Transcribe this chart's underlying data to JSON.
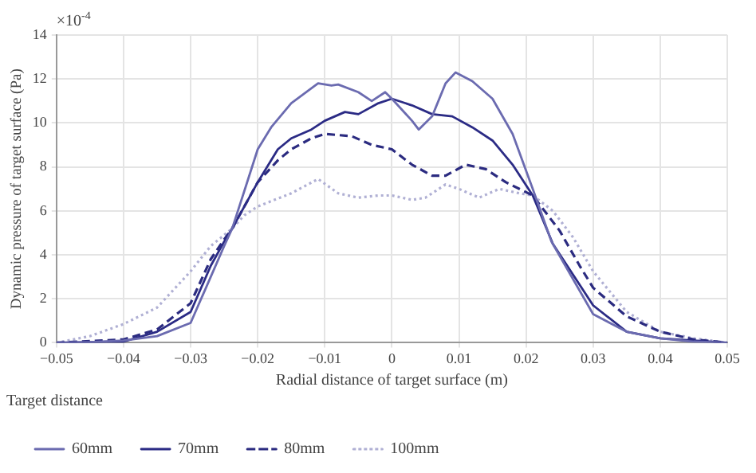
{
  "chart_data": {
    "type": "line",
    "xlabel": "Radial distance of target surface (m)",
    "ylabel": "Dynamic pressure of target surface (Pa)",
    "annotations": [
      "×10$^{-4}$"
    ],
    "legend_title": "Target distance",
    "legend": "bottom",
    "grid": true,
    "marker": "none",
    "xlim": [
      -0.05,
      0.05
    ],
    "xticks": [
      -0.05,
      -0.04,
      -0.03,
      -0.02,
      -0.01,
      0,
      0.01,
      0.02,
      0.03,
      0.04,
      0.05
    ],
    "ylim": [
      0,
      14
    ],
    "yticks": [
      0,
      2,
      4,
      6,
      8,
      10,
      12,
      14
    ],
    "series": [
      {
        "name": "60mm",
        "color": "#6b6bb0",
        "line_style": "solid",
        "x": [
          -0.05,
          -0.045,
          -0.04,
          -0.035,
          -0.03,
          -0.027,
          -0.025,
          -0.0238,
          -0.022,
          -0.02,
          -0.018,
          -0.015,
          -0.011,
          -0.009,
          -0.008,
          -0.005,
          -0.003,
          -0.001,
          0,
          0.003,
          0.004,
          0.006,
          0.008,
          0.0095,
          0.012,
          0.015,
          0.018,
          0.021,
          0.0238,
          0.03,
          0.035,
          0.04,
          0.045,
          0.05
        ],
        "values": [
          0,
          0.03,
          0.1,
          0.3,
          0.9,
          3.0,
          4.4,
          5.2,
          6.9,
          8.8,
          9.8,
          10.9,
          11.8,
          11.7,
          11.75,
          11.4,
          11.0,
          11.4,
          11.1,
          10.1,
          9.7,
          10.3,
          11.8,
          12.3,
          11.9,
          11.1,
          9.5,
          7.0,
          4.6,
          1.3,
          0.5,
          0.2,
          0.05,
          0
        ]
      },
      {
        "name": "70mm",
        "color": "#2b2b85",
        "line_style": "solid",
        "x": [
          -0.05,
          -0.04,
          -0.035,
          -0.03,
          -0.027,
          -0.025,
          -0.0238,
          -0.02,
          -0.017,
          -0.015,
          -0.012,
          -0.01,
          -0.007,
          -0.005,
          -0.002,
          0,
          0.003,
          0.006,
          0.009,
          0.012,
          0.015,
          0.018,
          0.021,
          0.024,
          0.03,
          0.035,
          0.04,
          0.05
        ],
        "values": [
          0,
          0.05,
          0.5,
          1.4,
          3.5,
          4.6,
          5.2,
          7.3,
          8.8,
          9.3,
          9.7,
          10.1,
          10.5,
          10.4,
          10.9,
          11.1,
          10.8,
          10.4,
          10.3,
          9.8,
          9.2,
          8.1,
          6.7,
          4.5,
          1.7,
          0.5,
          0.2,
          0
        ]
      },
      {
        "name": "80mm",
        "color": "#2b2b80",
        "line_style": "dashed",
        "x": [
          -0.05,
          -0.04,
          -0.035,
          -0.03,
          -0.027,
          -0.025,
          -0.0238,
          -0.02,
          -0.017,
          -0.015,
          -0.012,
          -0.01,
          -0.006,
          -0.003,
          0,
          0.003,
          0.006,
          0.008,
          0.011,
          0.014,
          0.017,
          0.021,
          0.025,
          0.028,
          0.03,
          0.035,
          0.04,
          0.045,
          0.05
        ],
        "values": [
          0,
          0.15,
          0.6,
          1.8,
          3.8,
          4.7,
          5.2,
          7.3,
          8.3,
          8.8,
          9.3,
          9.5,
          9.4,
          9.0,
          8.8,
          8.1,
          7.6,
          7.6,
          8.1,
          7.9,
          7.3,
          6.7,
          5.1,
          3.5,
          2.5,
          1.2,
          0.5,
          0.15,
          0
        ]
      },
      {
        "name": "100mm",
        "color": "#b0b0d4",
        "line_style": "dotted",
        "x": [
          -0.05,
          -0.045,
          -0.04,
          -0.035,
          -0.03,
          -0.027,
          -0.0238,
          -0.022,
          -0.02,
          -0.015,
          -0.011,
          -0.008,
          -0.005,
          -0.002,
          0,
          0.003,
          0.005,
          0.008,
          0.01,
          0.013,
          0.016,
          0.019,
          0.021,
          0.024,
          0.027,
          0.03,
          0.035,
          0.04,
          0.045,
          0.05
        ],
        "values": [
          0,
          0.3,
          0.85,
          1.6,
          3.25,
          4.4,
          5.2,
          5.8,
          6.2,
          6.8,
          7.45,
          6.8,
          6.6,
          6.7,
          6.7,
          6.5,
          6.6,
          7.2,
          7.0,
          6.6,
          7.0,
          6.8,
          6.7,
          6.0,
          4.8,
          3.25,
          1.4,
          0.5,
          0.2,
          0
        ]
      }
    ]
  }
}
